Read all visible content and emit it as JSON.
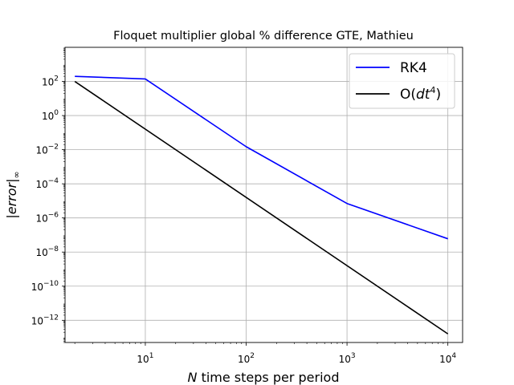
{
  "chart_data": {
    "type": "line",
    "title": "Floquet multiplier global % difference GTE, Mathieu",
    "xlabel": "N time steps per period",
    "ylabel": "|error|∞",
    "xscale": "log",
    "yscale": "log",
    "xlim": [
      1.6,
      14000
    ],
    "ylim": [
      5e-14,
      10000.0
    ],
    "grid": true,
    "legend_position": "top-right",
    "x_ticks": [
      {
        "value": 10,
        "base": "10",
        "exp": "1"
      },
      {
        "value": 100,
        "base": "10",
        "exp": "2"
      },
      {
        "value": 1000,
        "base": "10",
        "exp": "3"
      },
      {
        "value": 10000,
        "base": "10",
        "exp": "4"
      }
    ],
    "y_ticks": [
      {
        "value": 100,
        "base": "10",
        "exp": "2"
      },
      {
        "value": 1,
        "base": "10",
        "exp": "0"
      },
      {
        "value": 0.01,
        "base": "10",
        "exp": "−2"
      },
      {
        "value": 0.0001,
        "base": "10",
        "exp": "−4"
      },
      {
        "value": 1e-06,
        "base": "10",
        "exp": "−6"
      },
      {
        "value": 1e-08,
        "base": "10",
        "exp": "−8"
      },
      {
        "value": 1e-10,
        "base": "10",
        "exp": "−10"
      },
      {
        "value": 1e-12,
        "base": "10",
        "exp": "−12"
      }
    ],
    "series": [
      {
        "name": "RK4",
        "color": "#0000ff",
        "x": [
          2,
          10,
          100,
          1000,
          10000
        ],
        "y": [
          200,
          140,
          0.015,
          7e-06,
          6e-08
        ]
      },
      {
        "name": "O(dt⁴)",
        "color": "#000000",
        "x": [
          2,
          10000
        ],
        "y": [
          100,
          1.6e-13
        ]
      }
    ]
  }
}
